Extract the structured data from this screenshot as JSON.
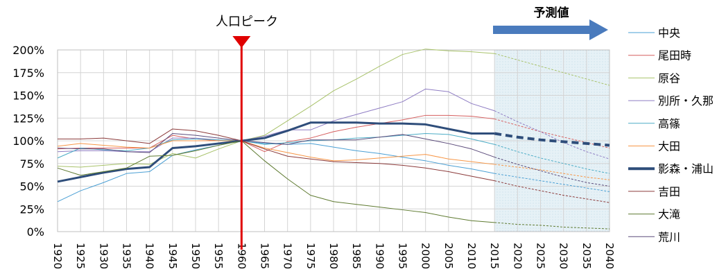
{
  "chart_data": {
    "type": "line",
    "title": "",
    "xlabel": "",
    "ylabel": "",
    "ylim": [
      0,
      200
    ],
    "x": [
      1920,
      1925,
      1930,
      1935,
      1940,
      1945,
      1950,
      1955,
      1960,
      1965,
      1970,
      1975,
      1980,
      1985,
      1990,
      1995,
      2000,
      2005,
      2010,
      2015,
      2020,
      2025,
      2030,
      2035,
      2040
    ],
    "x_tick_labels": [
      "1920",
      "1925",
      "1930",
      "1935",
      "1940",
      "1945",
      "1950",
      "1955",
      "1960",
      "1965",
      "1970",
      "1975",
      "1980",
      "1985",
      "1990",
      "1995",
      "2000",
      "2005",
      "2010",
      "2015",
      "2020",
      "2025",
      "2030",
      "2035",
      "2040"
    ],
    "y_tick_labels": [
      "0%",
      "25%",
      "50%",
      "75%",
      "100%",
      "125%",
      "150%",
      "175%",
      "200%"
    ],
    "grid": true,
    "legend_position": "right",
    "forecast_start": 2015,
    "annotations": {
      "peak_label": "人口ピーク",
      "peak_year": 1960,
      "forecast_label": "予測値"
    },
    "series": [
      {
        "name": "中央",
        "color": "#4a9fd4",
        "width": 1,
        "values": [
          33,
          45,
          54,
          64,
          66,
          84,
          90,
          95,
          100,
          97,
          96,
          97,
          93,
          89,
          86,
          82,
          78,
          73,
          69,
          64,
          60,
          56,
          52,
          48,
          44
        ]
      },
      {
        "name": "尾田時",
        "color": "#d65f5f",
        "width": 1,
        "values": [
          91,
          92,
          92,
          92,
          92,
          106,
          102,
          100,
          100,
          88,
          99,
          103,
          110,
          115,
          119,
          123,
          128,
          128,
          127,
          124,
          117,
          110,
          104,
          98,
          92
        ]
      },
      {
        "name": "原谷",
        "color": "#a8c26a",
        "width": 1,
        "values": [
          72,
          71,
          73,
          75,
          74,
          86,
          81,
          91,
          100,
          106,
          122,
          138,
          155,
          168,
          182,
          195,
          201,
          199,
          198,
          196,
          189,
          182,
          175,
          168,
          161
        ]
      },
      {
        "name": "別所・久那",
        "color": "#8e7cc3",
        "width": 1,
        "values": [
          88,
          89,
          89,
          88,
          88,
          103,
          103,
          101,
          100,
          105,
          112,
          112,
          122,
          129,
          136,
          143,
          157,
          154,
          141,
          133,
          121,
          110,
          98,
          88,
          80
        ]
      },
      {
        "name": "高篠",
        "color": "#4bacc6",
        "width": 1,
        "values": [
          81,
          92,
          90,
          89,
          92,
          101,
          102,
          101,
          100,
          96,
          98,
          100,
          101,
          103,
          104,
          106,
          108,
          107,
          102,
          96,
          88,
          81,
          75,
          69,
          64
        ]
      },
      {
        "name": "大田",
        "color": "#f79646",
        "width": 1,
        "values": [
          94,
          97,
          95,
          93,
          92,
          100,
          100,
          100,
          100,
          92,
          87,
          82,
          78,
          79,
          81,
          83,
          85,
          80,
          77,
          74,
          71,
          68,
          64,
          60,
          57
        ]
      },
      {
        "name": "影森・浦山",
        "color": "#2e4d7a",
        "width": 3,
        "values": [
          55,
          60,
          65,
          69,
          71,
          92,
          94,
          97,
          100,
          103,
          111,
          120,
          120,
          120,
          119,
          119,
          118,
          113,
          108,
          108,
          104,
          101,
          99,
          97,
          95
        ]
      },
      {
        "name": "吉田",
        "color": "#8b3a3a",
        "width": 1,
        "values": [
          102,
          102,
          103,
          100,
          97,
          113,
          111,
          106,
          100,
          91,
          83,
          80,
          77,
          76,
          75,
          73,
          70,
          66,
          61,
          56,
          50,
          45,
          40,
          36,
          32
        ]
      },
      {
        "name": "大滝",
        "color": "#5e7a30",
        "width": 1,
        "values": [
          70,
          62,
          66,
          70,
          83,
          84,
          89,
          95,
          100,
          78,
          58,
          40,
          33,
          30,
          27,
          24,
          21,
          16,
          12,
          10,
          8,
          7,
          5,
          4,
          3
        ]
      },
      {
        "name": "荒川",
        "color": "#5a4a7a",
        "width": 1,
        "values": [
          92,
          91,
          91,
          88,
          87,
          108,
          106,
          103,
          100,
          98,
          96,
          101,
          101,
          101,
          104,
          107,
          102,
          97,
          91,
          82,
          74,
          67,
          60,
          54,
          50
        ]
      }
    ]
  }
}
